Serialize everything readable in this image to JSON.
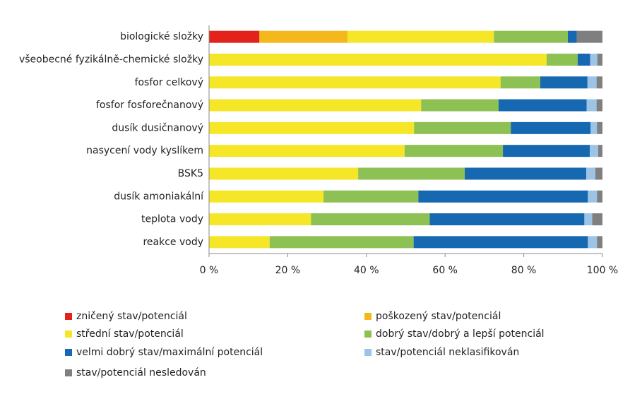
{
  "chart_data": {
    "type": "stacked-bar-horizontal",
    "categories": [
      "biologické složky",
      "všeobecné fyzikálně-chemické složky",
      "fosfor celkový",
      "fosfor fosforečnanový",
      "dusík dusičnanový",
      "nasycení vody kyslíkem",
      "BSK5",
      "dusík amoniakální",
      "teplota vody",
      "reakce vody"
    ],
    "series": [
      {
        "name": "zničený stav/potenciál",
        "color": "#e3231b",
        "values": [
          12.8,
          0,
          0,
          0,
          0,
          0,
          0,
          0,
          0,
          0
        ]
      },
      {
        "name": "poškozený stav/potenciál",
        "color": "#f4b81c",
        "values": [
          22.4,
          0,
          0,
          0,
          0,
          0,
          0,
          0,
          0,
          0
        ]
      },
      {
        "name": "střední stav/potenciál",
        "color": "#f6e628",
        "values": [
          37.2,
          85.8,
          74.1,
          53.9,
          52.1,
          49.7,
          37.9,
          29.1,
          25.9,
          15.4
        ]
      },
      {
        "name": "dobrý stav/dobrý a lepší potenciál",
        "color": "#8dc153",
        "values": [
          18.8,
          7.9,
          10.1,
          19.7,
          24.6,
          25.0,
          27.1,
          24.1,
          30.2,
          36.6
        ]
      },
      {
        "name": "velmi dobrý stav/maximální potenciál",
        "color": "#1668b0",
        "values": [
          2.3,
          3.2,
          12.0,
          22.4,
          20.3,
          22.1,
          30.9,
          43.1,
          39.3,
          44.3
        ]
      },
      {
        "name": "stav/potenciál neklasifikován",
        "color": "#9dc4e6",
        "values": [
          0,
          1.8,
          2.3,
          2.5,
          1.6,
          2.1,
          2.3,
          2.3,
          2.0,
          2.3
        ]
      },
      {
        "name": "stav/potenciál nesledován",
        "color": "#7f7f7f",
        "values": [
          6.5,
          1.3,
          1.5,
          1.5,
          1.4,
          1.1,
          1.8,
          1.4,
          2.6,
          1.4
        ]
      }
    ],
    "xlim": [
      0,
      100
    ],
    "xticks": [
      {
        "value": 0,
        "label": "0 %"
      },
      {
        "value": 20,
        "label": "20 %"
      },
      {
        "value": 40,
        "label": "40 %"
      },
      {
        "value": 60,
        "label": "60 %"
      },
      {
        "value": 80,
        "label": "80 %"
      },
      {
        "value": 100,
        "label": "100 %"
      }
    ]
  }
}
